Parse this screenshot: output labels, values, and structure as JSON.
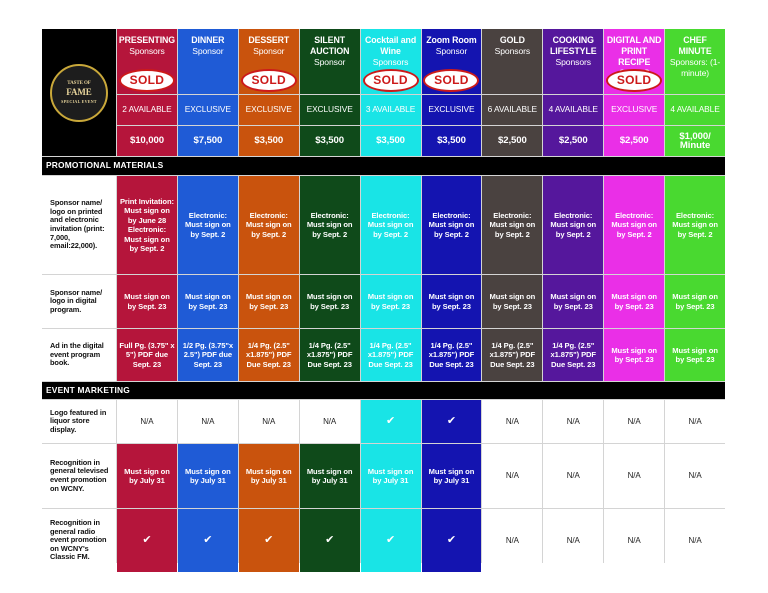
{
  "logo": {
    "line1": "TASTE OF",
    "line2": "FAME",
    "line3": "SPECIAL EVENT"
  },
  "columns": [
    {
      "key": "presenting",
      "title": "PRESENTING",
      "subtitle": "Sponsors",
      "sold": "SOLD",
      "availability": "2 AVAILABLE",
      "price": "$10,000",
      "color": "#b5153b"
    },
    {
      "key": "dinner",
      "title": "DINNER",
      "subtitle": "Sponsor",
      "sold": "",
      "availability": "EXCLUSIVE",
      "price": "$7,500",
      "color": "#1f5bd6"
    },
    {
      "key": "dessert",
      "title": "DESSERT",
      "subtitle": "Sponsor",
      "sold": "SOLD",
      "availability": "EXCLUSIVE",
      "price": "$3,500",
      "color": "#c9530d"
    },
    {
      "key": "silent",
      "title": "SILENT AUCTION",
      "subtitle": "Sponsor",
      "sold": "",
      "availability": "EXCLUSIVE",
      "price": "$3,500",
      "color": "#0f4a1a"
    },
    {
      "key": "cocktail",
      "title": "Cocktail and Wine",
      "subtitle": "Sponsors",
      "sold": "SOLD",
      "availability": "3 AVAILABLE",
      "price": "$3,500",
      "color": "#19e4e6"
    },
    {
      "key": "zoom",
      "title": "Zoom Room",
      "subtitle": "Sponsor",
      "sold": "SOLD",
      "availability": "EXCLUSIVE",
      "price": "$3,500",
      "color": "#1414b0"
    },
    {
      "key": "gold",
      "title": "GOLD",
      "subtitle": "Sponsors",
      "sold": "",
      "availability": "6 AVAILABLE",
      "price": "$2,500",
      "color": "#4a4240"
    },
    {
      "key": "cooking",
      "title": "COOKING LIFESTYLE",
      "subtitle": "Sponsors",
      "sold": "",
      "availability": "4 AVAILABLE",
      "price": "$2,500",
      "color": "#55179c"
    },
    {
      "key": "digital",
      "title": "DIGITAL AND PRINT RECIPE CARDS",
      "subtitle": "",
      "sold": "SOLD",
      "availability": "EXCLUSIVE",
      "price": "$2,500",
      "color": "#ea2fe7"
    },
    {
      "key": "chef",
      "title": "CHEF MINUTE",
      "subtitle": "Sponsors: (1-minute)",
      "sold": "",
      "availability": "4 AVAILABLE",
      "price": "$1,000/ Minute",
      "color": "#49d930"
    }
  ],
  "sections": {
    "promotional": "PROMOTIONAL MATERIALS",
    "event": "EVENT MARKETING"
  },
  "rows": [
    {
      "label": "Sponsor name/ logo on printed and electronic invitation (print: 7,000, email:22,000).",
      "cells": [
        "Print Invitation: Must sign on by June 28 Electronic: Must sign on by Sept. 2",
        "Electronic: Must sign on by Sept. 2",
        "Electronic: Must sign on by Sept. 2",
        "Electronic: Must sign on by Sept. 2",
        "Electronic: Must sign on by Sept. 2",
        "Electronic: Must sign on by Sept. 2",
        "Electronic: Must sign on by Sept. 2",
        "Electronic: Must sign on by Sept. 2",
        "Electronic: Must sign on by Sept. 2",
        "Electronic: Must sign on by Sept. 2"
      ]
    },
    {
      "label": "Sponsor name/ logo in digital program.",
      "cells": [
        "Must sign on by Sept. 23",
        "Must sign on by Sept. 23",
        "Must sign on by Sept. 23",
        "Must sign on by Sept. 23",
        "Must sign on by Sept. 23",
        "Must sign on by Sept. 23",
        "Must sign on by Sept. 23",
        "Must sign on by Sept. 23",
        "Must sign on by Sept. 23",
        "Must sign on by Sept. 23"
      ]
    },
    {
      "label": "Ad in the digital event program book.",
      "cells": [
        "Full Pg. (3.75\" x 5\") PDF due Sept. 23",
        "1/2 Pg. (3.75\"x 2.5\") PDF due Sept. 23",
        "1/4 Pg. (2.5\" x1.875\") PDF Due Sept. 23",
        "1/4 Pg. (2.5\" x1.875\") PDF Due Sept. 23",
        "1/4 Pg. (2.5\" x1.875\") PDF Due Sept. 23",
        "1/4 Pg. (2.5\" x1.875\") PDF Due Sept. 23",
        "1/4 Pg. (2.5\" x1.875\") PDF Due Sept. 23",
        "1/4 Pg. (2.5\" x1.875\") PDF Due Sept. 23",
        "Must sign on by Sept. 23",
        "Must sign on by Sept. 23"
      ]
    },
    {
      "label": "Logo featured in liquor store display.",
      "cells": [
        "N/A",
        "N/A",
        "N/A",
        "N/A",
        "✔",
        "✔",
        "N/A",
        "N/A",
        "N/A",
        "N/A"
      ]
    },
    {
      "label": "Recognition in general televised event promotion on WCNY.",
      "cells": [
        "Must sign on by July 31",
        "Must sign on by July 31",
        "Must sign on by July 31",
        "Must sign on by July 31",
        "Must sign on by July 31",
        "Must sign on by July 31",
        "N/A",
        "N/A",
        "N/A",
        "N/A"
      ]
    },
    {
      "label": "Recognition in general radio event promotion on WCNY's Classic FM.",
      "cells": [
        "✔",
        "✔",
        "✔",
        "✔",
        "✔",
        "✔",
        "N/A",
        "N/A",
        "N/A",
        "N/A"
      ]
    }
  ]
}
